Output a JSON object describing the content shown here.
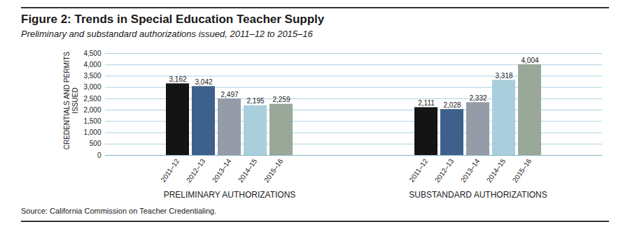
{
  "chart_data": {
    "type": "bar",
    "title": "Figure 2: Trends in Special Education Teacher Supply",
    "subtitle": "Preliminary and substandard authorizations issued, 2011–12 to 2015–16",
    "ylabel": "CREDENTIALS AND PERMITS ISSUED",
    "source": "Source: California Commission on Teacher Credentialing.",
    "categories": [
      "PRELIMINARY AUTHORIZATIONS",
      "SUBSTANDARD AUTHORIZATIONS"
    ],
    "series": [
      {
        "name": "2011–12",
        "color": "#141414",
        "values": [
          3162,
          2111
        ],
        "value_labels": [
          "3,162",
          "2,111"
        ]
      },
      {
        "name": "2012–13",
        "color": "#3d618a",
        "values": [
          3042,
          2028
        ],
        "value_labels": [
          "3,042",
          "2,028"
        ]
      },
      {
        "name": "2013–14",
        "color": "#959ca8",
        "values": [
          2497,
          2332
        ],
        "value_labels": [
          "2,497",
          "2,332"
        ]
      },
      {
        "name": "2014–15",
        "color": "#a9cfdc",
        "values": [
          2195,
          3318
        ],
        "value_labels": [
          "2,195",
          "3,318"
        ]
      },
      {
        "name": "2015–16",
        "color": "#9aa89a",
        "values": [
          2259,
          4004
        ],
        "value_labels": [
          "2,259",
          "4,004"
        ]
      }
    ],
    "ylim": [
      0,
      4500
    ],
    "yticks": [
      0,
      500,
      {
        "value": 1000,
        "label": "1,000"
      },
      {
        "value": 1500,
        "label": "1,500"
      },
      {
        "value": 2000,
        "label": "2,000"
      },
      {
        "value": 2500,
        "label": "2,500"
      },
      {
        "value": 3000,
        "label": "3,000"
      },
      {
        "value": 3500,
        "label": "3,500"
      },
      {
        "value": 4000,
        "label": "4,000"
      },
      {
        "value": 4500,
        "label": "4,500"
      }
    ],
    "grid": true,
    "data_labels": true
  }
}
